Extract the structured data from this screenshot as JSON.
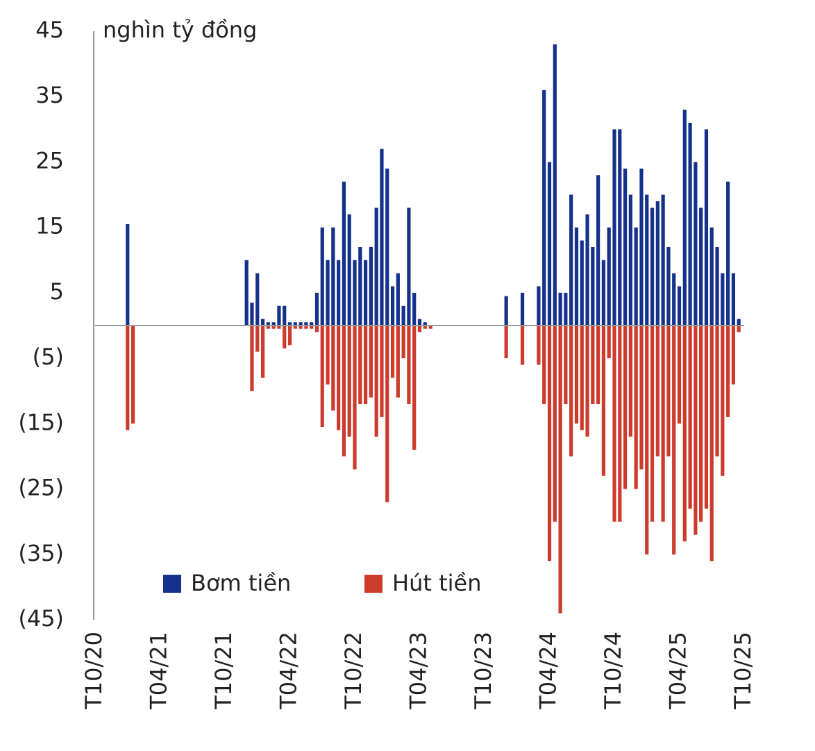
{
  "chart_data": {
    "type": "bar",
    "y_label": "nghìn tỷ đồng",
    "categories": [
      "T10/20",
      null,
      null,
      null,
      null,
      null,
      null,
      null,
      null,
      null,
      null,
      null,
      "T04/21",
      null,
      null,
      null,
      null,
      null,
      null,
      null,
      null,
      null,
      null,
      null,
      "T10/21",
      null,
      null,
      null,
      null,
      null,
      null,
      null,
      null,
      null,
      null,
      null,
      "T04/22",
      null,
      null,
      null,
      null,
      null,
      null,
      null,
      null,
      null,
      null,
      null,
      "T10/22",
      null,
      null,
      null,
      null,
      null,
      null,
      null,
      null,
      null,
      null,
      null,
      "T04/23",
      null,
      null,
      null,
      null,
      null,
      null,
      null,
      null,
      null,
      null,
      null,
      "T10/23",
      null,
      null,
      null,
      null,
      null,
      null,
      null,
      null,
      null,
      null,
      null,
      "T04/24",
      null,
      null,
      null,
      null,
      null,
      null,
      null,
      null,
      null,
      null,
      null,
      "T10/24",
      null,
      null,
      null,
      null,
      null,
      null,
      null,
      null,
      null,
      null,
      null,
      "T04/25",
      null,
      null,
      null,
      null,
      null,
      null,
      null,
      null,
      null,
      null,
      null,
      "T10/25"
    ],
    "series": [
      {
        "name": "Bơm tiền",
        "color": "#14318c",
        "values": [
          0,
          0,
          0,
          0,
          0,
          0,
          15.5,
          0,
          0,
          0,
          0,
          0,
          0,
          0,
          0,
          0,
          0,
          0,
          0,
          0,
          0,
          0,
          0,
          0,
          0,
          0,
          0,
          0,
          10,
          3.5,
          8,
          1,
          0.5,
          0.5,
          3,
          3,
          0.5,
          0.5,
          0.5,
          0.5,
          0.5,
          5,
          15,
          10,
          15,
          10,
          22,
          17,
          10,
          12,
          10,
          12,
          18,
          27,
          24,
          6,
          8,
          3,
          18,
          5,
          1,
          0.5,
          0,
          0,
          0,
          0,
          0,
          0,
          0,
          0,
          0,
          0,
          0,
          0,
          0,
          0,
          4.5,
          0,
          0,
          5,
          0,
          0,
          6,
          36,
          25,
          43,
          5,
          5,
          20,
          15,
          13,
          17,
          12,
          23,
          10,
          15,
          30,
          30,
          24,
          20,
          15,
          24,
          20,
          18,
          19,
          20,
          12,
          8,
          6,
          33,
          31,
          25,
          18,
          30,
          15,
          12,
          8,
          22,
          8,
          1,
          0
        ]
      },
      {
        "name": "Hút tiền",
        "color": "#cc3b2b",
        "values": [
          0,
          0,
          0,
          0,
          0,
          0,
          -16,
          -15,
          0,
          0,
          0,
          0,
          0,
          0,
          0,
          0,
          0,
          0,
          0,
          0,
          0,
          0,
          0,
          0,
          0,
          0,
          0,
          0,
          0,
          -10,
          -4,
          -8,
          -0.5,
          -0.5,
          -0.5,
          -3.5,
          -3,
          -0.5,
          -0.5,
          -0.5,
          -0.5,
          -1,
          -15.5,
          -9,
          -13,
          -16,
          -20,
          -17,
          -22,
          -12,
          -12,
          -11,
          -17,
          -14,
          -27,
          -8,
          -11,
          -5,
          -12,
          -19,
          -1,
          -0.5,
          -0.5,
          0,
          0,
          0,
          0,
          0,
          0,
          0,
          0,
          0,
          0,
          0,
          0,
          0,
          -5,
          0,
          0,
          -6,
          0,
          0,
          -6,
          -12,
          -36,
          -30,
          -44,
          -12,
          -20,
          -15,
          -16,
          -17,
          -12,
          -12,
          -23,
          -5,
          -30,
          -30,
          -25,
          -17,
          -25,
          -22,
          -35,
          -30,
          -20,
          -30,
          -20,
          -35,
          -15,
          -33,
          -28,
          -32,
          -30,
          -28,
          -36,
          -20,
          -23,
          -14,
          -9,
          -1,
          0
        ]
      }
    ],
    "ylim": [
      -45,
      45
    ],
    "yticks": [
      45,
      35,
      25,
      15,
      5,
      {
        "value": -5,
        "label": "(5)"
      },
      {
        "value": -15,
        "label": "(15)"
      },
      {
        "value": -25,
        "label": "(25)"
      },
      {
        "value": -35,
        "label": "(35)"
      },
      {
        "value": -45,
        "label": "(45)"
      }
    ],
    "legend": "bottom"
  }
}
